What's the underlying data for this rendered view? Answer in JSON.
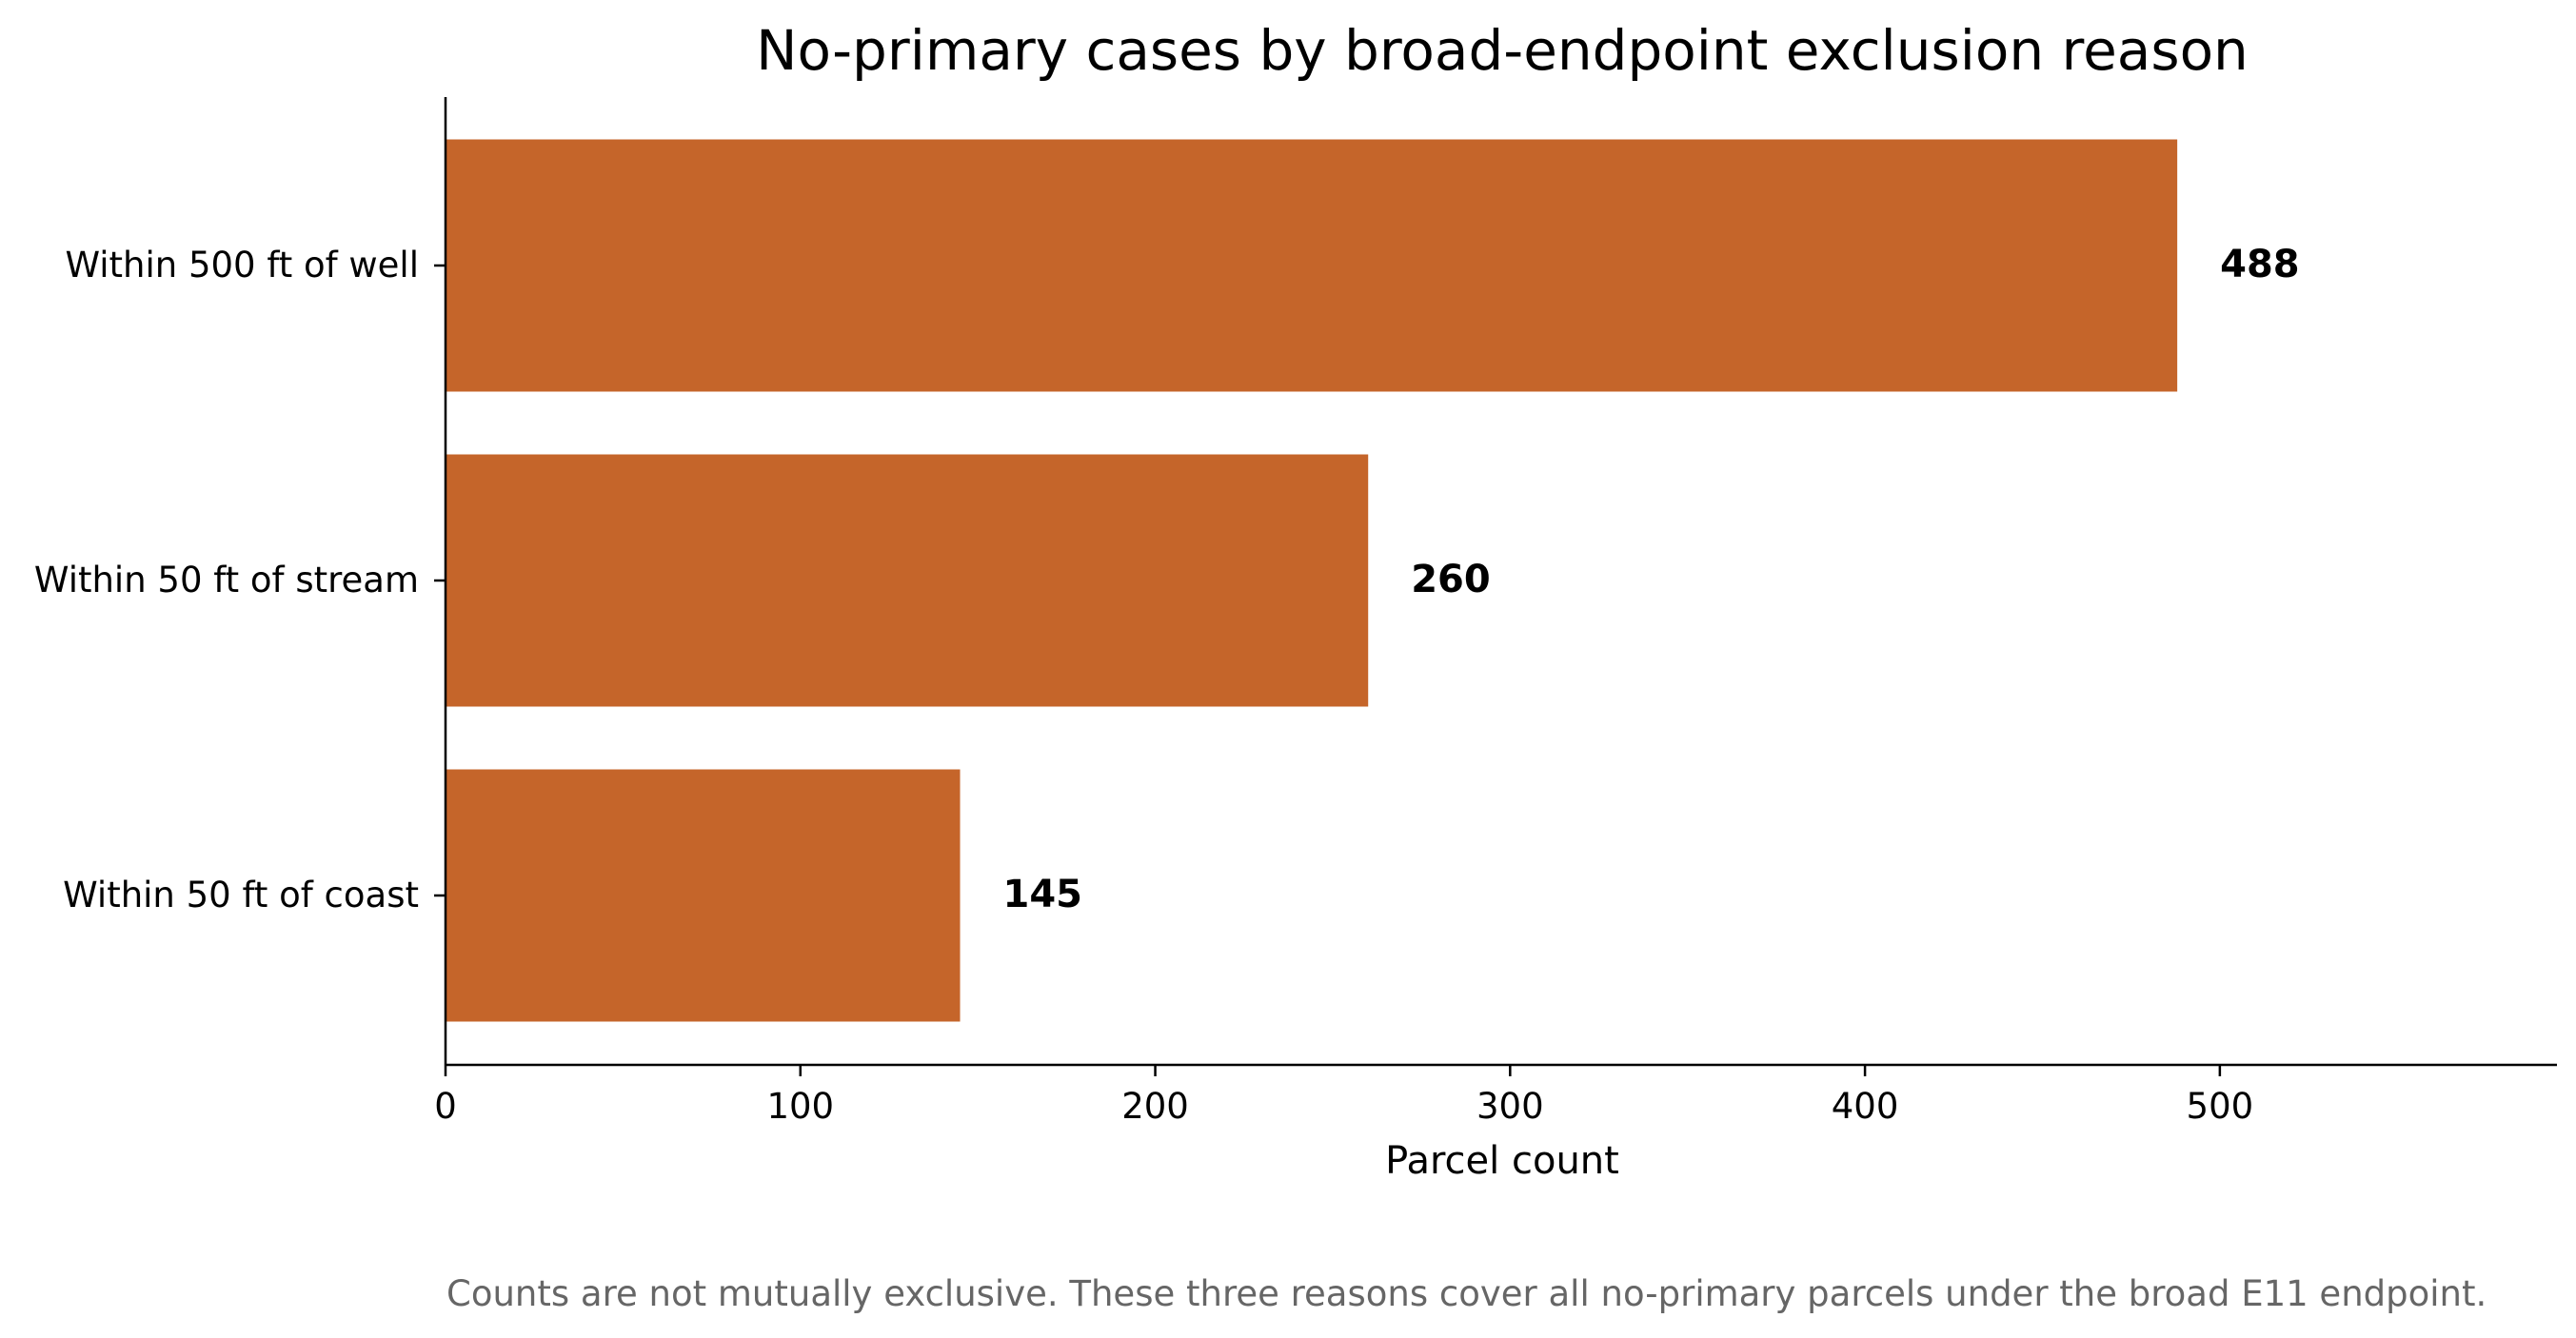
{
  "chart_data": {
    "type": "bar",
    "orientation": "horizontal",
    "title": "No-primary cases by broad-endpoint exclusion reason",
    "xlabel": "Parcel count",
    "ylabel": "",
    "categories": [
      "Within 500 ft of well",
      "Within 50 ft of stream",
      "Within 50 ft of coast"
    ],
    "values": [
      488,
      260,
      145
    ],
    "value_labels": [
      "488",
      "260",
      "145"
    ],
    "xlim": [
      0,
      595
    ],
    "xticks": [
      0,
      100,
      200,
      300,
      400,
      500
    ],
    "xtick_labels": [
      "0",
      "100",
      "200",
      "300",
      "400",
      "500"
    ],
    "grid": false,
    "legend": "none",
    "bar_color": "#C5652A",
    "footnote": "Counts are not mutually exclusive. These three reasons cover all no-primary parcels under the broad E11 endpoint."
  }
}
